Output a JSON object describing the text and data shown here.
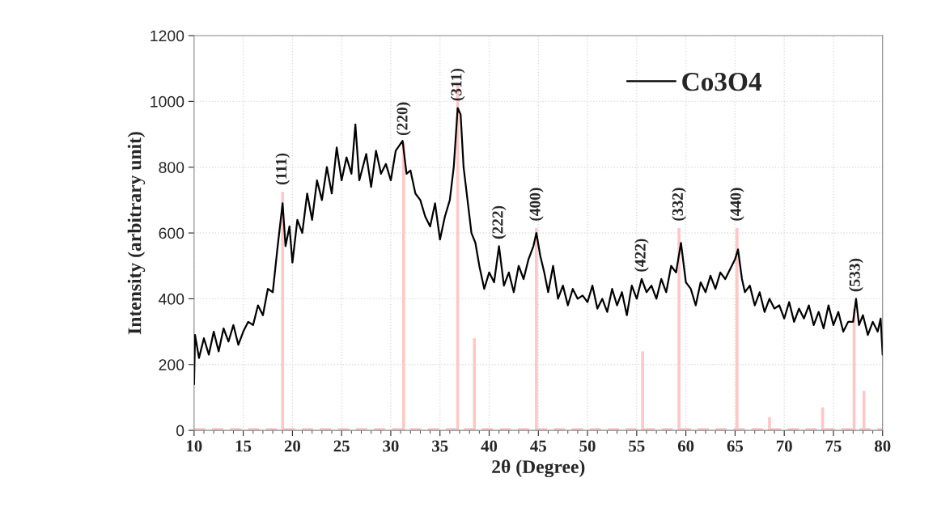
{
  "chart_data": {
    "type": "line",
    "xlabel": "2θ (Degree)",
    "ylabel": "Intensity (arbitrary unit)",
    "xlim": [
      10,
      80
    ],
    "xticks": [
      10,
      15,
      20,
      25,
      30,
      35,
      40,
      45,
      50,
      55,
      60,
      65,
      70,
      75,
      80
    ],
    "ylim": [
      0,
      1200
    ],
    "yticks": [
      0,
      200,
      400,
      600,
      800,
      1000,
      1200
    ],
    "grid": true,
    "legend": "top right",
    "ref_lines": [
      {
        "axis": "y",
        "value": 0,
        "color": "#ffc7c7",
        "line_style": "dashed"
      }
    ],
    "series": [
      {
        "name": "Co3O4",
        "color": "#000000",
        "x": [
          10.0,
          10.1,
          10.5,
          11,
          11.5,
          12,
          12.5,
          13,
          13.5,
          14,
          14.5,
          15,
          15.5,
          16,
          16.5,
          17,
          17.5,
          18,
          18.5,
          19,
          19.3,
          19.7,
          20,
          20.5,
          21,
          21.5,
          22,
          22.5,
          23,
          23.5,
          24,
          24.5,
          25,
          25.5,
          26,
          26.4,
          26.8,
          27.5,
          28,
          28.5,
          29,
          29.5,
          30,
          30.5,
          31.2,
          31.6,
          32,
          32.5,
          33,
          33.5,
          34,
          34.5,
          35,
          35.5,
          36,
          36.4,
          36.8,
          37.1,
          37.4,
          37.8,
          38.2,
          38.6,
          39,
          39.5,
          40,
          40.5,
          41,
          41.5,
          42,
          42.5,
          43,
          43.5,
          44,
          44.5,
          44.8,
          45.2,
          45.6,
          46,
          46.5,
          47,
          47.5,
          48,
          48.5,
          49,
          49.5,
          50,
          50.5,
          51,
          51.5,
          52,
          52.5,
          53,
          53.5,
          54,
          54.5,
          55,
          55.5,
          56,
          56.5,
          57,
          57.5,
          58,
          58.5,
          59,
          59.5,
          60,
          60.5,
          61,
          61.5,
          62,
          62.5,
          63,
          63.5,
          64,
          64.5,
          65,
          65.3,
          65.7,
          66,
          66.5,
          67,
          67.5,
          68,
          68.5,
          69,
          69.5,
          70,
          70.5,
          71,
          71.5,
          72,
          72.5,
          73,
          73.5,
          74,
          74.5,
          75,
          75.5,
          76,
          76.5,
          77,
          77.3,
          77.6,
          78,
          78.5,
          79,
          79.5,
          79.8,
          80
        ],
        "values": [
          140,
          290,
          220,
          280,
          230,
          300,
          240,
          310,
          270,
          320,
          260,
          300,
          330,
          320,
          380,
          350,
          430,
          420,
          560,
          690,
          560,
          620,
          510,
          640,
          600,
          720,
          640,
          760,
          700,
          800,
          720,
          860,
          760,
          830,
          780,
          930,
          760,
          840,
          740,
          850,
          780,
          810,
          760,
          850,
          880,
          780,
          790,
          720,
          700,
          650,
          620,
          690,
          580,
          650,
          700,
          800,
          980,
          960,
          800,
          700,
          600,
          570,
          500,
          430,
          480,
          450,
          560,
          440,
          480,
          420,
          500,
          460,
          520,
          560,
          600,
          530,
          480,
          420,
          500,
          400,
          440,
          380,
          430,
          400,
          410,
          390,
          440,
          370,
          400,
          360,
          430,
          380,
          420,
          350,
          440,
          400,
          460,
          420,
          440,
          400,
          460,
          420,
          500,
          480,
          570,
          450,
          430,
          380,
          450,
          420,
          470,
          430,
          480,
          460,
          490,
          520,
          550,
          460,
          420,
          440,
          380,
          420,
          360,
          400,
          370,
          380,
          340,
          390,
          330,
          370,
          340,
          380,
          320,
          360,
          310,
          380,
          320,
          360,
          300,
          330,
          330,
          400,
          320,
          350,
          290,
          330,
          300,
          340,
          230
        ]
      },
      {
        "type": "bar",
        "color": "#ffc7c7",
        "x": [
          19.0,
          31.3,
          36.8,
          38.5,
          44.8,
          55.6,
          59.3,
          65.2,
          68.5,
          73.9,
          77.1,
          78.1
        ],
        "values": [
          725,
          875,
          1050,
          280,
          615,
          240,
          615,
          615,
          40,
          70,
          370,
          120
        ]
      }
    ],
    "annotations": [
      {
        "text": "(111)",
        "x": 19.0,
        "y": 725
      },
      {
        "text": "(220)",
        "x": 31.3,
        "y": 875
      },
      {
        "text": "(311)",
        "x": 36.8,
        "y": 980
      },
      {
        "text": "(222)",
        "x": 41,
        "y": 560
      },
      {
        "text": "(400)",
        "x": 44.8,
        "y": 615
      },
      {
        "text": "(422)",
        "x": 55.5,
        "y": 460
      },
      {
        "text": "(332)",
        "x": 59.3,
        "y": 615
      },
      {
        "text": "(440)",
        "x": 65.2,
        "y": 615
      },
      {
        "text": "(533)",
        "x": 77.3,
        "y": 400
      }
    ]
  }
}
